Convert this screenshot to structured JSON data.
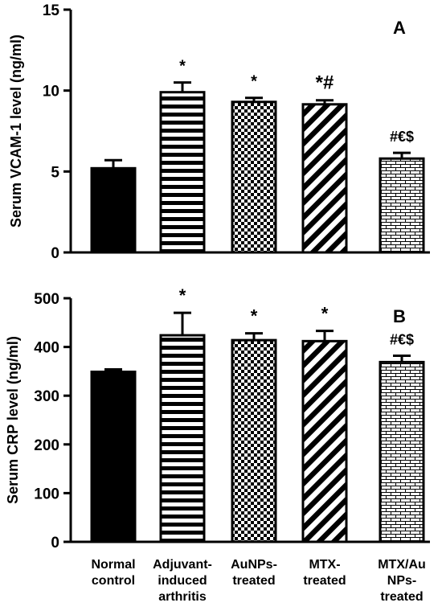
{
  "chart_data": [
    {
      "type": "bar",
      "panel": "A",
      "ylabel": "Serum VCAM-1 level (ng/ml)",
      "ylim": [
        0,
        15
      ],
      "yticks": [
        0,
        5,
        10,
        15
      ],
      "categories": [
        "Normal control",
        "Adjuvant-induced arthritis",
        "AuNPs-treated",
        "MTX-treated",
        "MTX/AuNPs-treated"
      ],
      "values": [
        5.2,
        9.9,
        9.3,
        9.15,
        5.8
      ],
      "errors": [
        0.5,
        0.6,
        0.25,
        0.25,
        0.35
      ],
      "annotations": [
        "",
        "*",
        "*",
        "*#",
        "#€$"
      ],
      "grid": false,
      "legend": "none"
    },
    {
      "type": "bar",
      "panel": "B",
      "ylabel": "Serum CRP level (ng/ml)",
      "ylim": [
        0,
        500
      ],
      "yticks": [
        0,
        100,
        200,
        300,
        400,
        500
      ],
      "categories": [
        "Normal control",
        "Adjuvant-induced arthritis",
        "AuNPs-treated",
        "MTX-treated",
        "MTX/AuNPs-treated"
      ],
      "values": [
        349,
        424,
        414,
        412,
        369
      ],
      "errors": [
        5,
        46,
        14,
        21,
        13
      ],
      "annotations": [
        "",
        "*",
        "*",
        "*",
        "#€$"
      ],
      "grid": false,
      "legend": "none"
    }
  ],
  "x_labels": [
    [
      "Normal",
      "control"
    ],
    [
      "Adjuvant-",
      "induced",
      "arthritis"
    ],
    [
      "AuNPs-",
      "treated"
    ],
    [
      "MTX-",
      "treated"
    ],
    [
      "MTX/Au",
      "NPs-",
      "treated"
    ]
  ],
  "patterns": [
    "solid",
    "horizontal-stripes",
    "checker",
    "diagonal-stripes",
    "brick"
  ],
  "colors": {
    "ink": "#000000",
    "paper": "#ffffff"
  }
}
